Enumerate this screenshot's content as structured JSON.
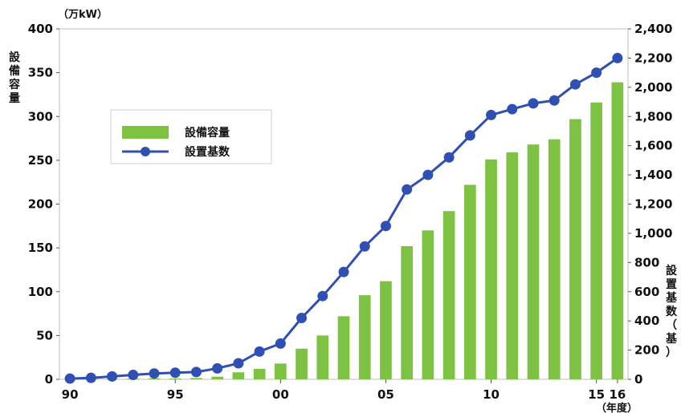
{
  "chart_data": {
    "type": "bar+line",
    "title": "",
    "units": {
      "left": "（万kW）",
      "bottom": "（年度）"
    },
    "ylabel_left": "設備容量",
    "ylabel_right": "設置基数（基）",
    "y_left_lim": [
      0,
      400
    ],
    "y_right_lim": [
      0,
      2400
    ],
    "y_left_ticks": [
      "0",
      "50",
      "100",
      "150",
      "200",
      "250",
      "300",
      "350",
      "400"
    ],
    "y_right_ticks": [
      "0",
      "200",
      "400",
      "600",
      "800",
      "1,000",
      "1,200",
      "1,400",
      "1,600",
      "1,800",
      "2,000",
      "2,200",
      "2,400"
    ],
    "x": [
      1990,
      1991,
      1992,
      1993,
      1994,
      1995,
      1996,
      1997,
      1998,
      1999,
      2000,
      2001,
      2002,
      2003,
      2004,
      2005,
      2006,
      2007,
      2008,
      2009,
      2010,
      2011,
      2012,
      2013,
      2014,
      2015,
      2016
    ],
    "x_tick_labels": [
      {
        "x": 1990,
        "label": "90"
      },
      {
        "x": 1995,
        "label": "95"
      },
      {
        "x": 2000,
        "label": "00"
      },
      {
        "x": 2005,
        "label": "05"
      },
      {
        "x": 2010,
        "label": "10"
      },
      {
        "x": 2015,
        "label": "15"
      },
      {
        "x": 2016,
        "label": "16"
      }
    ],
    "legend": {
      "placement": "upper-left",
      "items": [
        "設備容量",
        "設置基数"
      ]
    },
    "series": [
      {
        "name": "設備容量",
        "type": "bar",
        "axis": "left",
        "color": "#7dc242",
        "values": [
          0.1,
          0.2,
          0.5,
          0.8,
          1,
          1,
          1.5,
          3,
          8,
          12,
          18,
          35,
          50,
          72,
          96,
          112,
          152,
          170,
          192,
          222,
          251,
          259,
          268,
          274,
          297,
          316,
          339
        ]
      },
      {
        "name": "設置基数",
        "type": "line",
        "axis": "right",
        "color": "#2f4fb3",
        "values": [
          5,
          10,
          20,
          30,
          40,
          45,
          50,
          75,
          110,
          190,
          245,
          420,
          570,
          735,
          910,
          1050,
          1300,
          1400,
          1520,
          1670,
          1810,
          1850,
          1890,
          1910,
          2020,
          2100,
          2200
        ]
      }
    ]
  }
}
